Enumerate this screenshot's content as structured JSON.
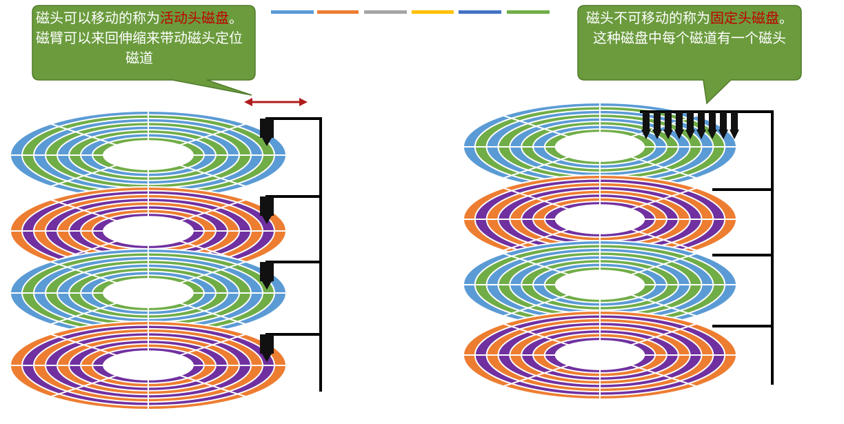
{
  "callouts": [
    {
      "before": "磁头可以移动的称为",
      "emphasis": "活动头磁盘",
      "after": "。磁臂可以来回伸缩来带动磁头定位磁道"
    },
    {
      "before": "磁头不可移动的称为",
      "emphasis": "固定头磁盘",
      "after": "。这种磁盘中每个磁道有一个磁头"
    }
  ]
}
